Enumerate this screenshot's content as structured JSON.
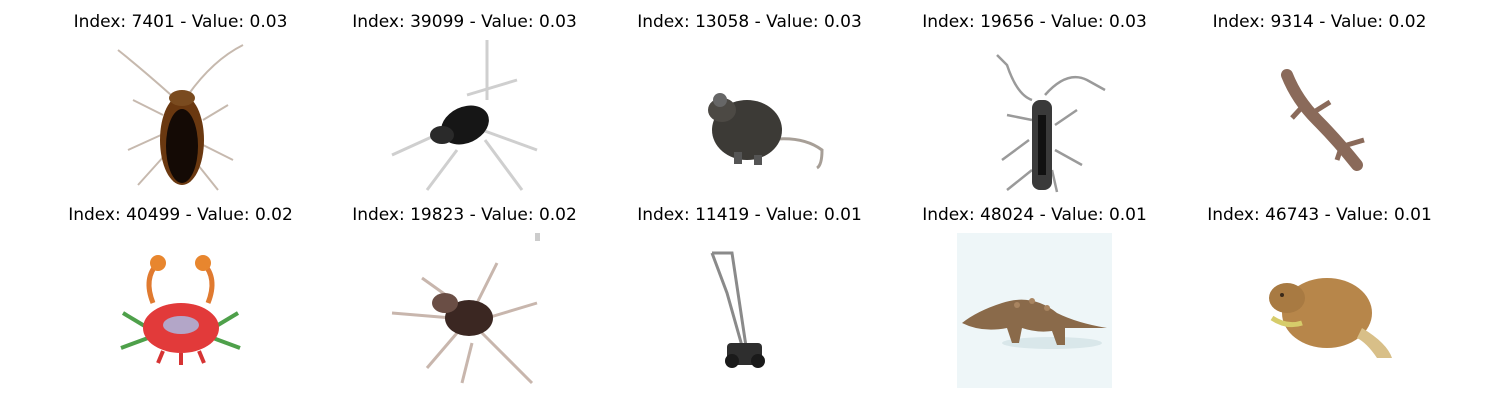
{
  "grid": {
    "items": [
      {
        "title": "Index: 7401 - Value: 0.03",
        "subject": "cockroach"
      },
      {
        "title": "Index: 39099 - Value: 0.03",
        "subject": "beetle"
      },
      {
        "title": "Index: 13058 - Value: 0.03",
        "subject": "mouse"
      },
      {
        "title": "Index: 19656 - Value: 0.03",
        "subject": "longhorn-beetle"
      },
      {
        "title": "Index: 9314 - Value: 0.02",
        "subject": "lizard"
      },
      {
        "title": "Index: 40499 - Value: 0.02",
        "subject": "crab"
      },
      {
        "title": "Index: 19823 - Value: 0.02",
        "subject": "spider"
      },
      {
        "title": "Index: 11419 - Value: 0.01",
        "subject": "lawn-mower"
      },
      {
        "title": "Index: 48024 - Value: 0.01",
        "subject": "dinosaur"
      },
      {
        "title": "Index: 46743 - Value: 0.01",
        "subject": "beaver"
      }
    ]
  }
}
